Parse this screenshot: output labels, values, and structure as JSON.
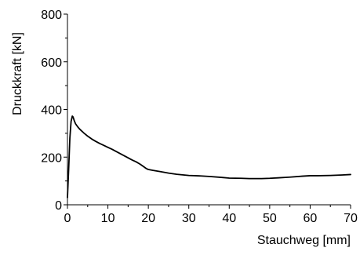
{
  "chart_data": {
    "type": "line",
    "title": "",
    "xlabel": "Stauchweg [mm]",
    "ylabel": "Druckkraft [kN]",
    "xlim": [
      0,
      70
    ],
    "ylim": [
      0,
      800
    ],
    "xticks": [
      0,
      10,
      20,
      30,
      40,
      50,
      60,
      70
    ],
    "yticks": [
      0,
      200,
      400,
      600,
      800
    ],
    "grid": false,
    "legend": "none",
    "line_color": "#000000",
    "series": [
      {
        "x": [
          0,
          0.3,
          0.6,
          0.9,
          1.2,
          1.4,
          1.7,
          2.0,
          2.5,
          3,
          4,
          5,
          6,
          7,
          8,
          9,
          10,
          11,
          12,
          13,
          14,
          15,
          16,
          17,
          18,
          19,
          19.5,
          20,
          21,
          22,
          23,
          25,
          27,
          30,
          33,
          35,
          38,
          40,
          43,
          45,
          48,
          50,
          52,
          55,
          58,
          60,
          62,
          65,
          68,
          70
        ],
        "y": [
          30,
          150,
          280,
          350,
          372,
          368,
          352,
          340,
          328,
          318,
          302,
          288,
          276,
          266,
          257,
          249,
          241,
          233,
          224,
          215,
          206,
          197,
          188,
          180,
          170,
          158,
          152,
          148,
          145,
          142,
          139,
          133,
          128,
          123,
          121,
          119,
          115,
          112,
          111,
          110,
          110,
          111,
          113,
          116,
          120,
          122,
          122,
          123,
          125,
          127
        ]
      }
    ]
  }
}
